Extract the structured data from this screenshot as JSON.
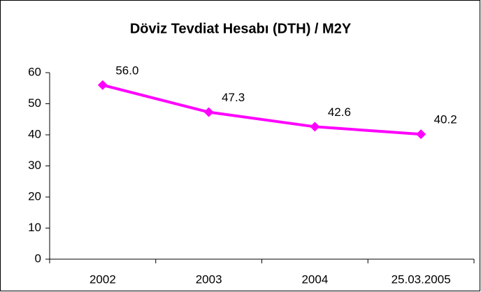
{
  "chart_data": {
    "type": "line",
    "title": "Döviz Tevdiat Hesabı (DTH) / M2Y",
    "categories": [
      "2002",
      "2003",
      "2004",
      "25.03.2005"
    ],
    "series": [
      {
        "name": "DTH / M2Y",
        "color": "#ff00ff",
        "values": [
          56.0,
          47.3,
          42.6,
          40.2
        ],
        "value_labels": [
          "56.0",
          "47.3",
          "42.6",
          "40.2"
        ]
      }
    ],
    "ylim": [
      0,
      60
    ],
    "yticks": [
      0,
      10,
      20,
      30,
      40,
      50,
      60
    ],
    "grid": false,
    "legend": false
  }
}
